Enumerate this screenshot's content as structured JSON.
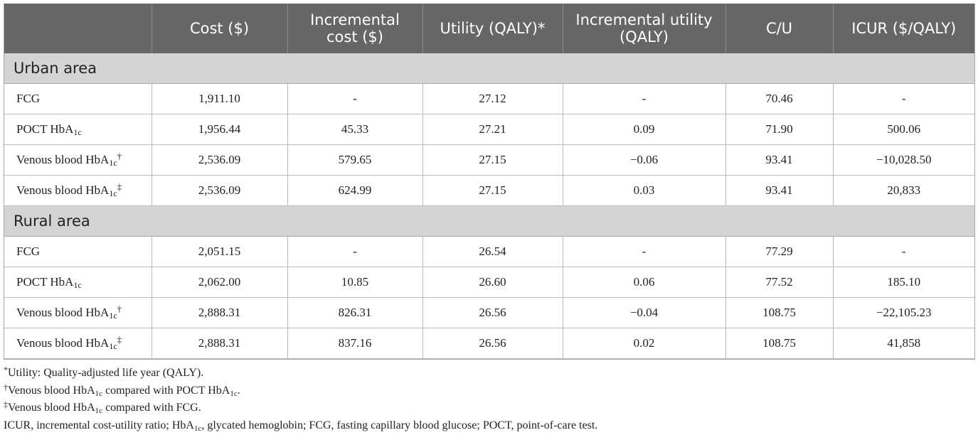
{
  "table": {
    "headers": [
      "",
      "Cost ($)",
      "Incremental cost ($)",
      "Utility (QALY)*",
      "Incremental utility (QALY)",
      "C/U",
      "ICUR ($/QALY)"
    ],
    "sections": [
      {
        "title": "Urban area",
        "rows": [
          {
            "name": "FCG",
            "sub": "",
            "mark": "",
            "values": [
              "1,911.10",
              "-",
              "27.12",
              "-",
              "70.46",
              "-"
            ]
          },
          {
            "name": "POCT HbA",
            "sub": "1c",
            "mark": "",
            "values": [
              "1,956.44",
              "45.33",
              "27.21",
              "0.09",
              "71.90",
              "500.06"
            ]
          },
          {
            "name": "Venous blood HbA",
            "sub": "1c",
            "mark": "†",
            "values": [
              "2,536.09",
              "579.65",
              "27.15",
              "−0.06",
              "93.41",
              "−10,028.50"
            ]
          },
          {
            "name": "Venous blood HbA",
            "sub": "1c",
            "mark": "‡",
            "values": [
              "2,536.09",
              "624.99",
              "27.15",
              "0.03",
              "93.41",
              "20,833"
            ]
          }
        ]
      },
      {
        "title": "Rural area",
        "rows": [
          {
            "name": "FCG",
            "sub": "",
            "mark": "",
            "values": [
              "2,051.15",
              "-",
              "26.54",
              "-",
              "77.29",
              "-"
            ]
          },
          {
            "name": "POCT HbA",
            "sub": "1c",
            "mark": "",
            "values": [
              "2,062.00",
              "10.85",
              "26.60",
              "0.06",
              "77.52",
              "185.10"
            ]
          },
          {
            "name": "Venous blood HbA",
            "sub": "1c",
            "mark": "†",
            "values": [
              "2,888.31",
              "826.31",
              "26.56",
              "−0.04",
              "108.75",
              "−22,105.23"
            ]
          },
          {
            "name": "Venous blood HbA",
            "sub": "1c",
            "mark": "‡",
            "values": [
              "2,888.31",
              "837.16",
              "26.56",
              "0.02",
              "108.75",
              "41,858"
            ]
          }
        ]
      }
    ]
  },
  "footnotes": {
    "f1": {
      "mark": "*",
      "text": "Utility: Quality-adjusted life year (QALY)."
    },
    "f2": {
      "mark": "†",
      "a": "Venous blood HbA",
      "sub1": "1c",
      "b": " compared with POCT HbA",
      "sub2": "1c",
      "c": "."
    },
    "f3": {
      "mark": "‡",
      "a": "Venous blood HbA",
      "sub1": "1c",
      "b": " compared with FCG."
    },
    "f4": {
      "a": "ICUR, incremental cost-utility ratio; HbA",
      "sub1": "1c",
      "b": ", glycated hemoglobin; FCG, fasting capillary blood glucose; POCT, point-of-care test."
    }
  }
}
